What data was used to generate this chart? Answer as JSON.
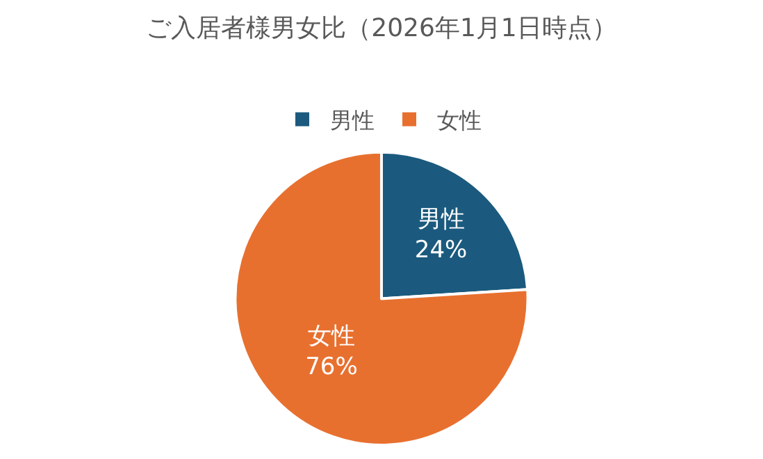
{
  "chart_data": {
    "type": "pie",
    "title": "ご入居者様男女比（2026年1月1日時点）",
    "categories": [
      "男性",
      "女性"
    ],
    "values": [
      24,
      76
    ],
    "colors": [
      "#1b5a7e",
      "#e8702f"
    ],
    "value_labels": [
      "24%",
      "76%"
    ],
    "legend": "top"
  }
}
